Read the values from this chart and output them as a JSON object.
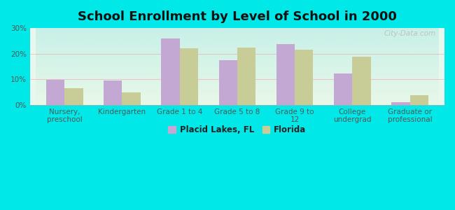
{
  "title": "School Enrollment by Level of School in 2000",
  "categories": [
    "Nursery,\npreschool",
    "Kindergarten",
    "Grade 1 to 4",
    "Grade 5 to 8",
    "Grade 9 to\n12",
    "College\nundergrad",
    "Graduate or\nprofessional"
  ],
  "placid_lakes": [
    9.8,
    9.5,
    26.0,
    17.5,
    23.8,
    12.3,
    1.2
  ],
  "florida": [
    6.5,
    5.0,
    22.0,
    22.3,
    21.5,
    18.8,
    3.8
  ],
  "placid_color": "#c4a8d4",
  "florida_color": "#c8cc96",
  "background_color": "#00e8e8",
  "ylim": [
    0,
    30
  ],
  "yticks": [
    0,
    10,
    20,
    30
  ],
  "ytick_labels": [
    "0%",
    "10%",
    "20%",
    "30%"
  ],
  "legend_label1": "Placid Lakes, FL",
  "legend_label2": "Florida",
  "watermark": "City-Data.com",
  "title_fontsize": 13,
  "tick_fontsize": 7.5,
  "legend_fontsize": 8.5,
  "bar_width": 0.32,
  "plot_bg_top": "#c8f0e8",
  "plot_bg_bottom": "#e8f8e8"
}
